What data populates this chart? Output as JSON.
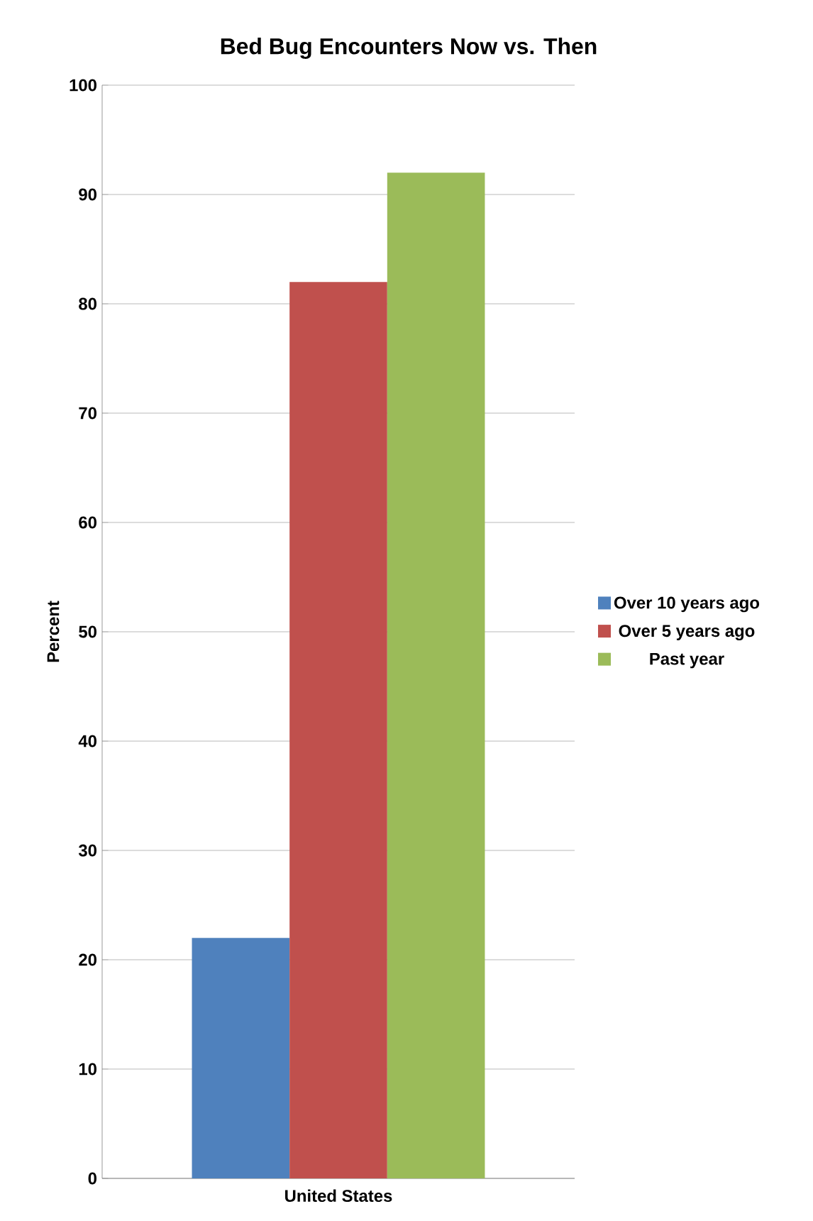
{
  "chart_data": {
    "type": "bar",
    "title": "Bed Bug Encounters Now vs. Then",
    "ylabel": "Percent",
    "categories": [
      "United States"
    ],
    "series": [
      {
        "name": "Over 10 years ago",
        "color": "#4f81bd",
        "values": [
          22
        ]
      },
      {
        "name": "Over 5 years ago",
        "color": "#c0504d",
        "values": [
          82
        ]
      },
      {
        "name": "Past year",
        "color": "#9bbb59",
        "values": [
          92
        ]
      }
    ],
    "ylim": [
      0,
      100
    ],
    "yticks": [
      0,
      10,
      20,
      30,
      40,
      50,
      60,
      70,
      80,
      90,
      100
    ],
    "grid": "y",
    "legend": "right"
  }
}
